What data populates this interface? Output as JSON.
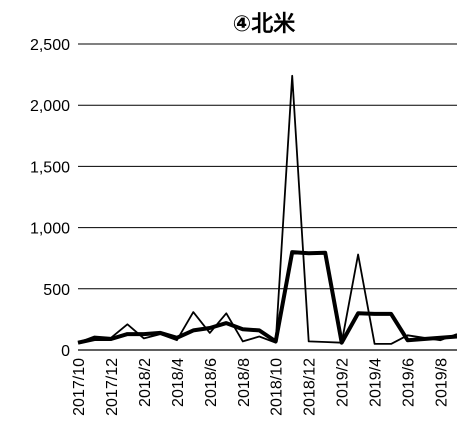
{
  "chart_data": {
    "type": "line",
    "title": "④北米",
    "xlabel": "",
    "ylabel": "",
    "ylim": [
      0,
      2500
    ],
    "yticks": [
      "0",
      "500",
      "1,000",
      "1,500",
      "2,000",
      "2,500"
    ],
    "ytick_values": [
      0,
      500,
      1000,
      1500,
      2000,
      2500
    ],
    "grid": "horizontal",
    "legend": "none",
    "x": [
      "2017/10",
      "2017/11",
      "2017/12",
      "2018/1",
      "2018/2",
      "2018/3",
      "2018/4",
      "2018/5",
      "2018/6",
      "2018/7",
      "2018/8",
      "2018/9",
      "2018/10",
      "2018/11",
      "2018/12",
      "2019/1",
      "2019/2",
      "2019/3",
      "2019/4",
      "2019/5",
      "2019/6",
      "2019/7",
      "2019/8",
      "2019/9"
    ],
    "xtick_labels": [
      "2017/10",
      "2017/12",
      "2018/2",
      "2018/4",
      "2018/6",
      "2018/8",
      "2018/10",
      "2018/12",
      "2019/2",
      "2019/4",
      "2019/6",
      "2019/8"
    ],
    "series": [
      {
        "style": "thin",
        "color": "#000000",
        "values": [
          60,
          110,
          100,
          210,
          95,
          130,
          80,
          310,
          140,
          300,
          70,
          110,
          60,
          2240,
          70,
          65,
          60,
          780,
          50,
          50,
          120,
          100,
          80,
          130
        ]
      },
      {
        "style": "thick",
        "color": "#000000",
        "values": [
          60,
          90,
          90,
          130,
          130,
          140,
          100,
          160,
          180,
          220,
          170,
          160,
          70,
          800,
          790,
          795,
          60,
          300,
          295,
          295,
          80,
          90,
          100,
          110
        ]
      }
    ]
  }
}
